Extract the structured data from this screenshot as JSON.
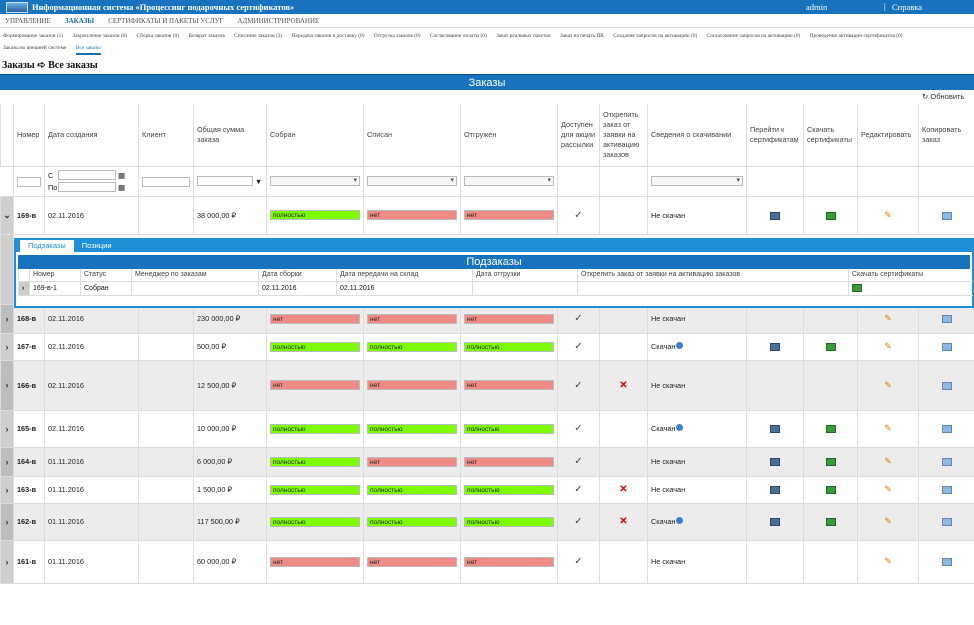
{
  "app": {
    "title": "Информационная система «Процессинг подарочных сертификатов»",
    "user": "admin",
    "separator": "|",
    "help": "Справка"
  },
  "menu": [
    {
      "label": "Управление",
      "active": false
    },
    {
      "label": "Заказы",
      "active": true
    },
    {
      "label": "Сертификаты и пакеты услуг",
      "active": false
    },
    {
      "label": "Администрирование",
      "active": false
    }
  ],
  "submenu": [
    {
      "label": "Формирование заказов (1)"
    },
    {
      "label": "Закрепление заказов (0)"
    },
    {
      "label": "Сборка заказов (0)"
    },
    {
      "label": "Возврат заказов"
    },
    {
      "label": "Списание заказов (3)"
    },
    {
      "label": "Передача заказов в доставку (0)"
    },
    {
      "label": "Отгрузка заказов (0)"
    },
    {
      "label": "Согласование оплаты (0)"
    },
    {
      "label": "Заказ реальных пакетов"
    },
    {
      "label": "Заказ на печать ПК"
    },
    {
      "label": "Создание запросов на активацию (0)"
    },
    {
      "label": "Согласование запросов на активацию (0)"
    },
    {
      "label": "Проведение активации сертификатов (0)"
    },
    {
      "label": "Заказы во внешней системе"
    },
    {
      "label": "Все заказы",
      "active": true
    }
  ],
  "breadcrumb": "Заказы ➪ Все заказы",
  "banner": "Заказы",
  "refresh": "Обновить",
  "columns": [
    "Номер",
    "Дата создания",
    "Клиент",
    "Общая сумма заказа",
    "Собран",
    "Списан",
    "Отгружен",
    "Доступен для акции рассылки",
    "Открепить заказ от заявки на активацию заказов",
    "Сведения о скачивании",
    "Перейти к сертификатам",
    "Скачать сертификаты",
    "Редактировать",
    "Копировать заказ"
  ],
  "filter": {
    "from": "С",
    "to": "По"
  },
  "rows": [
    {
      "id": "169-в",
      "date": "02.11.2016",
      "sum": "38 000,00 ₽",
      "assembled": "полностью",
      "assembled_color": "#7cfc00",
      "written": "нет",
      "written_color": "#f08a84",
      "shipped": "нет",
      "shipped_color": "#f08a84",
      "mailing": "✓",
      "detach": "",
      "download": "Не скачан"
    },
    {
      "id": "168-в",
      "date": "02.11.2016",
      "sum": "230 000,00 ₽",
      "assembled": "нет",
      "assembled_color": "#f08a84",
      "written": "нет",
      "written_color": "#f08a84",
      "shipped": "нет",
      "shipped_color": "#f08a84",
      "mailing": "✓",
      "detach": "",
      "download": "Не скачан"
    },
    {
      "id": "167-в",
      "date": "02.11.2016",
      "sum": "500,00 ₽",
      "assembled": "полностью",
      "assembled_color": "#7cfc00",
      "written": "полностью",
      "written_color": "#7cfc00",
      "shipped": "полностью",
      "shipped_color": "#7cfc00",
      "mailing": "✓",
      "detach": "",
      "download": "Скачан"
    },
    {
      "id": "166-в",
      "date": "02.11.2016",
      "sum": "12 500,00 ₽",
      "assembled": "нет",
      "assembled_color": "#f08a84",
      "written": "нет",
      "written_color": "#f08a84",
      "shipped": "нет",
      "shipped_color": "#f08a84",
      "mailing": "✓",
      "detach": "✕",
      "download": "Не скачан"
    },
    {
      "id": "165-в",
      "date": "02.11.2016",
      "sum": "10 000,00 ₽",
      "assembled": "полностью",
      "assembled_color": "#7cfc00",
      "written": "полностью",
      "written_color": "#7cfc00",
      "shipped": "полностью",
      "shipped_color": "#7cfc00",
      "mailing": "✓",
      "detach": "",
      "download": "Скачан"
    },
    {
      "id": "164-в",
      "date": "01.11.2016",
      "sum": "6 000,00 ₽",
      "assembled": "полностью",
      "assembled_color": "#7cfc00",
      "written": "нет",
      "written_color": "#f08a84",
      "shipped": "нет",
      "shipped_color": "#f08a84",
      "mailing": "✓",
      "detach": "",
      "download": "Не скачан"
    },
    {
      "id": "163-в",
      "date": "01.11.2016",
      "sum": "1 500,00 ₽",
      "assembled": "полностью",
      "assembled_color": "#7cfc00",
      "written": "полностью",
      "written_color": "#7cfc00",
      "shipped": "полностью",
      "shipped_color": "#7cfc00",
      "mailing": "✓",
      "detach": "✕",
      "download": "Не скачан"
    },
    {
      "id": "162-в",
      "date": "01.11.2016",
      "sum": "117 500,00 ₽",
      "assembled": "полностью",
      "assembled_color": "#7cfc00",
      "written": "полностью",
      "written_color": "#7cfc00",
      "shipped": "полностью",
      "shipped_color": "#7cfc00",
      "mailing": "✓",
      "detach": "✕",
      "download": "Скачан"
    },
    {
      "id": "161-в",
      "date": "01.11.2016",
      "sum": "60 000,00 ₽",
      "assembled": "нет",
      "assembled_color": "#f08a84",
      "written": "нет",
      "written_color": "#f08a84",
      "shipped": "нет",
      "shipped_color": "#f08a84",
      "mailing": "✓",
      "detach": "",
      "download": "Не скачан"
    }
  ],
  "subpanel": {
    "tabs": [
      "Подзаказы",
      "Позиции"
    ],
    "title": "Подзаказы",
    "columns": [
      "Номер",
      "Статус",
      "Менеджер по заказам",
      "Дата сборки",
      "Дата передачи на склад",
      "Дата отгрузки",
      "Открепить заказ от заявки на активацию заказов",
      "Скачать сертификаты"
    ],
    "row": {
      "id": "169-в-1",
      "status": "Собран",
      "manager": "",
      "assembled": "02.11.2016",
      "transferred": "02.11.2016",
      "shipped": "",
      "detach": ""
    }
  }
}
